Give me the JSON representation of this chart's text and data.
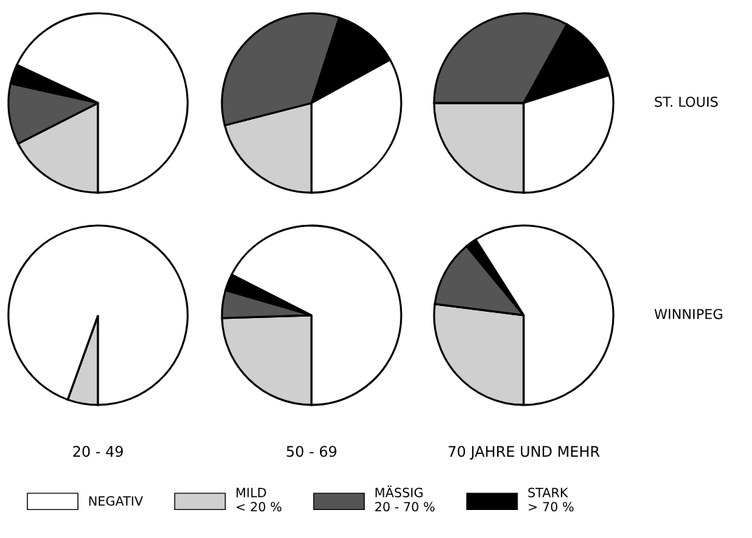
{
  "chart_data": [
    {
      "type": "pie",
      "categories": [
        "NEGATIV",
        "MILD\n< 20 %",
        "MÄSSIG\n20 - 70 %",
        "STARK\n> 70 %"
      ],
      "values": [
        68,
        17.5,
        11,
        3.5
      ],
      "colors": [
        "#ffffff",
        "#cfcfcf",
        "#555555",
        "#000000"
      ],
      "legend": "bottom"
    },
    {
      "type": "pie",
      "values": [
        33,
        21,
        34,
        12
      ],
      "colors": [
        "#ffffff",
        "#cfcfcf",
        "#555555",
        "#000000"
      ]
    },
    {
      "type": "pie",
      "values": [
        30,
        25,
        33,
        12
      ],
      "colors": [
        "#ffffff",
        "#cfcfcf",
        "#555555",
        "#000000"
      ],
      "ylabel": "ST. LOUIS"
    },
    {
      "type": "pie",
      "values": [
        94.5,
        5.5,
        0,
        0
      ],
      "colors": [
        "#ffffff",
        "#cfcfcf",
        "#555555",
        "#000000"
      ],
      "xlabel": "20 - 49"
    },
    {
      "type": "pie",
      "values": [
        67.5,
        24.5,
        5,
        3
      ],
      "colors": [
        "#ffffff",
        "#cfcfcf",
        "#555555",
        "#000000"
      ],
      "xlabel": "50 - 69"
    },
    {
      "type": "pie",
      "values": [
        59,
        27,
        12,
        2
      ],
      "colors": [
        "#ffffff",
        "#cfcfcf",
        "#555555",
        "#000000"
      ],
      "xlabel": "70 JAHRE UND MEHR",
      "ylabel": "WINNIPEG"
    }
  ]
}
